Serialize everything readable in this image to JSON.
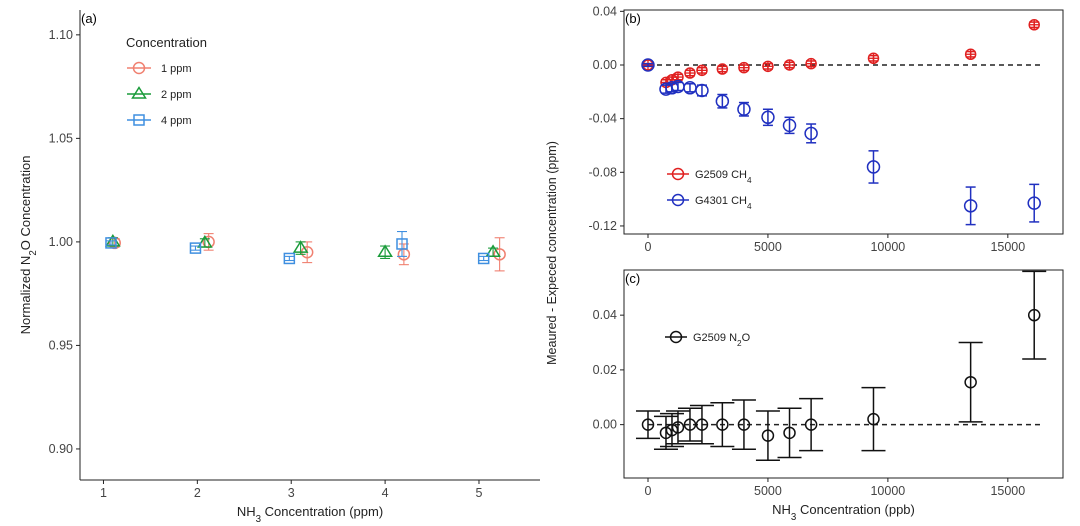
{
  "colors": {
    "c1ppm": "#f08070",
    "c2ppm": "#1a9b3a",
    "c4ppm": "#3f8fe0",
    "g2509_ch4": "#e02020",
    "g4301_ch4": "#2030c0",
    "n2o": "#111111"
  },
  "chart_data": [
    {
      "id": "a",
      "panel_label": "(a)",
      "type": "scatter",
      "xlabel_parts": [
        "NH",
        "3",
        " Concentration (ppm)"
      ],
      "ylabel_parts": [
        "Normalized  N",
        "2",
        "O Concentration"
      ],
      "x_ticks": [
        1,
        2,
        3,
        4,
        5
      ],
      "y_ticks": [
        "0.90",
        "0.95",
        "1.00",
        "1.05",
        "1.10"
      ],
      "xlim": [
        0.75,
        5.65
      ],
      "ylim": [
        0.885,
        1.112
      ],
      "legend": {
        "title": "Concentration",
        "position": "top-left",
        "items": [
          {
            "label": "1 ppm",
            "shape": "circle",
            "color_key": "c1ppm"
          },
          {
            "label": "2 ppm",
            "shape": "triangle",
            "color_key": "c2ppm"
          },
          {
            "label": "4 ppm",
            "shape": "square",
            "color_key": "c4ppm"
          }
        ]
      },
      "series": [
        {
          "name": "1 ppm",
          "shape": "circle",
          "color_key": "c1ppm",
          "x": [
            1.12,
            2.12,
            3.17,
            4.2,
            5.22
          ],
          "y": [
            0.9995,
            1.0,
            0.995,
            0.994,
            0.994
          ],
          "err": [
            0.002,
            0.004,
            0.005,
            0.005,
            0.008
          ]
        },
        {
          "name": "2 ppm",
          "shape": "triangle",
          "color_key": "c2ppm",
          "x": [
            1.1,
            2.08,
            3.1,
            4.0,
            5.15
          ],
          "y": [
            1.0,
            0.9995,
            0.997,
            0.995,
            0.995
          ],
          "err": [
            0.002,
            0.002,
            0.003,
            0.003,
            0.002
          ]
        },
        {
          "name": "4 ppm",
          "shape": "square",
          "color_key": "c4ppm",
          "x": [
            1.08,
            1.98,
            2.98,
            4.18,
            5.05
          ],
          "y": [
            0.9995,
            0.997,
            0.992,
            0.999,
            0.992
          ],
          "err": [
            0.001,
            0.001,
            0.001,
            0.006,
            0.001
          ]
        }
      ]
    },
    {
      "id": "b",
      "panel_label": "(b)",
      "type": "scatter",
      "shared_ylabel": "Meaured - Expeced concentration (ppm)",
      "x_ticks": [
        0,
        5000,
        10000,
        15000
      ],
      "y_ticks": [
        "-0.12",
        "-0.08",
        "-0.04",
        "0.00",
        "0.04"
      ],
      "xlim": [
        -1000,
        17300
      ],
      "ylim": [
        -0.126,
        0.041
      ],
      "reference_line": 0,
      "legend": {
        "position": "bottom-left",
        "items": [
          {
            "label_parts": [
              "G2509 CH",
              "4"
            ],
            "color_key": "g2509_ch4"
          },
          {
            "label_parts": [
              "G4301 CH",
              "4"
            ],
            "color_key": "g4301_ch4"
          }
        ]
      },
      "series": [
        {
          "name": "G2509 CH4",
          "color_key": "g2509_ch4",
          "x": [
            0,
            750,
            1000,
            1250,
            1750,
            2250,
            3100,
            4000,
            5000,
            5900,
            6800,
            9400,
            13450,
            16100
          ],
          "y": [
            0.0,
            -0.013,
            -0.011,
            -0.009,
            -0.006,
            -0.004,
            -0.003,
            -0.002,
            -0.001,
            0.0,
            0.001,
            0.005,
            0.008,
            0.03
          ],
          "err": [
            0.001,
            0.002,
            0.002,
            0.002,
            0.002,
            0.002,
            0.002,
            0.002,
            0.002,
            0.002,
            0.002,
            0.002,
            0.002,
            0.002
          ]
        },
        {
          "name": "G4301 CH4",
          "color_key": "g4301_ch4",
          "x": [
            0,
            750,
            1000,
            1250,
            1750,
            2250,
            3100,
            4000,
            5000,
            5900,
            6800,
            9400,
            13450,
            16100
          ],
          "y": [
            0.0,
            -0.018,
            -0.017,
            -0.016,
            -0.017,
            -0.019,
            -0.027,
            -0.033,
            -0.039,
            -0.045,
            -0.051,
            -0.076,
            -0.105,
            -0.103
          ],
          "err": [
            0.001,
            0.003,
            0.003,
            0.003,
            0.003,
            0.004,
            0.005,
            0.005,
            0.006,
            0.006,
            0.007,
            0.012,
            0.014,
            0.014
          ]
        }
      ]
    },
    {
      "id": "c",
      "panel_label": "(c)",
      "type": "scatter",
      "xlabel_parts": [
        "NH",
        "3",
        " Concentration (ppb)"
      ],
      "x_ticks": [
        0,
        5000,
        10000,
        15000
      ],
      "y_ticks": [
        "0.00",
        "0.02",
        "0.04"
      ],
      "xlim": [
        -1000,
        17300
      ],
      "ylim": [
        -0.0195,
        0.0565
      ],
      "reference_line": 0,
      "legend": {
        "position": "top-left",
        "items": [
          {
            "label_parts": [
              "G2509 N",
              "2",
              "O"
            ],
            "color_key": "n2o"
          }
        ]
      },
      "series": [
        {
          "name": "G2509 N2O",
          "color_key": "n2o",
          "x": [
            0,
            750,
            1000,
            1250,
            1750,
            2250,
            3100,
            4000,
            5000,
            5900,
            6800,
            9400,
            13450,
            16100
          ],
          "y": [
            0.0,
            -0.003,
            -0.002,
            -0.001,
            0.0,
            0.0,
            0.0,
            0.0,
            -0.004,
            -0.003,
            0.0,
            0.002,
            0.0155,
            0.04
          ],
          "err": [
            0.005,
            0.006,
            0.006,
            0.006,
            0.006,
            0.007,
            0.008,
            0.009,
            0.009,
            0.009,
            0.0095,
            0.0115,
            0.0145,
            0.016
          ]
        }
      ]
    }
  ]
}
